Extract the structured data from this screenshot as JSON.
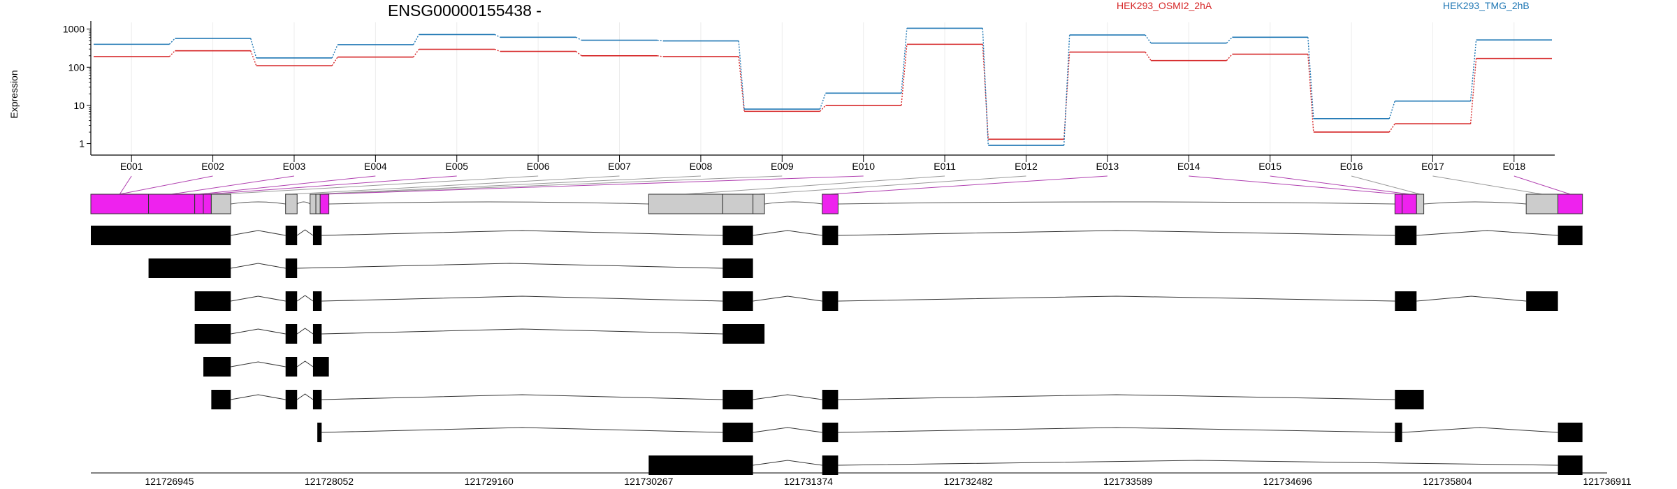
{
  "chart_data": {
    "type": "line",
    "title": "ENSG00000155438 -",
    "ylabel": "Expression",
    "y_scale": "log",
    "ylim": [
      0.5,
      1500
    ],
    "y_ticks": [
      {
        "value": 1,
        "label": "1"
      },
      {
        "value": 10,
        "label": "10"
      },
      {
        "value": 100,
        "label": "100"
      },
      {
        "value": 1000,
        "label": "1000"
      }
    ],
    "grid": "vertical, light",
    "legend_placement": "top-right",
    "categories": [
      "E001",
      "E002",
      "E003",
      "E004",
      "E005",
      "E006",
      "E007",
      "E008",
      "E009",
      "E010",
      "E011",
      "E012",
      "E013",
      "E014",
      "E015",
      "E016",
      "E017",
      "E018"
    ],
    "series": [
      {
        "name": "HEK293_OSMI2_2hA",
        "color": "#d62728",
        "values": [
          190,
          270,
          110,
          185,
          295,
          260,
          200,
          190,
          7,
          10,
          400,
          1.3,
          250,
          150,
          220,
          2,
          3.3,
          170
        ]
      },
      {
        "name": "HEK293_TMG_2hB",
        "color": "#1f77b4",
        "values": [
          400,
          570,
          175,
          390,
          720,
          610,
          510,
          490,
          8,
          21,
          1050,
          0.9,
          700,
          430,
          610,
          4.5,
          13,
          520
        ]
      }
    ],
    "gene_model": {
      "genomic_range": [
        121726400,
        121736911
      ],
      "coordinate_ticks": [
        121726945,
        121728052,
        121729160,
        121730267,
        121731374,
        121732482,
        121733589,
        121734696,
        121735804,
        121736911
      ],
      "exon_bins": [
        {
          "id": "E001",
          "start": 121726400,
          "end": 121726800,
          "highlight": true
        },
        {
          "id": "E002",
          "start": 121726800,
          "end": 121727120,
          "highlight": true
        },
        {
          "id": "E003",
          "start": 121727120,
          "end": 121727180,
          "highlight": true
        },
        {
          "id": "E004",
          "start": 121727180,
          "end": 121727235,
          "highlight": true
        },
        {
          "id": "E005",
          "start": 121727235,
          "end": 121727370,
          "highlight": false
        },
        {
          "id": "E006",
          "start": 121727750,
          "end": 121727830,
          "highlight": false
        },
        {
          "id": "E007",
          "start": 121727920,
          "end": 121727960,
          "highlight": false
        },
        {
          "id": "E008",
          "start": 121727960,
          "end": 121727990,
          "highlight": false
        },
        {
          "id": "E009",
          "start": 121727990,
          "end": 121728050,
          "highlight": true
        },
        {
          "id": "E010",
          "start": 121730267,
          "end": 121730780,
          "highlight": false
        },
        {
          "id": "E011",
          "start": 121730780,
          "end": 121730990,
          "highlight": false
        },
        {
          "id": "E012",
          "start": 121730990,
          "end": 121731070,
          "highlight": false
        },
        {
          "id": "E013",
          "start": 121731470,
          "end": 121731580,
          "highlight": true
        },
        {
          "id": "E014",
          "start": 121735440,
          "end": 121735490,
          "highlight": true
        },
        {
          "id": "E015",
          "start": 121735490,
          "end": 121735590,
          "highlight": true
        },
        {
          "id": "E016",
          "start": 121735590,
          "end": 121735640,
          "highlight": false
        },
        {
          "id": "E017",
          "start": 121736350,
          "end": 121736570,
          "highlight": false
        },
        {
          "id": "E018",
          "start": 121736570,
          "end": 121736740,
          "highlight": true
        }
      ],
      "bin_label_connections": [
        {
          "label": "E001",
          "bin": "E001"
        },
        {
          "label": "E002",
          "bin": "E001"
        },
        {
          "label": "E003",
          "bin": "E002"
        },
        {
          "label": "E004",
          "bin": "E003"
        },
        {
          "label": "E005",
          "bin": "E004"
        },
        {
          "label": "E006",
          "bin": "E005"
        },
        {
          "label": "E007",
          "bin": "E006"
        },
        {
          "label": "E008",
          "bin": "E007"
        },
        {
          "label": "E009",
          "bin": "E008"
        },
        {
          "label": "E010",
          "bin": "E009"
        },
        {
          "label": "E011",
          "bin": "E010"
        },
        {
          "label": "E012",
          "bin": "E012"
        },
        {
          "label": "E013",
          "bin": "E013"
        },
        {
          "label": "E014",
          "bin": "E014"
        },
        {
          "label": "E015",
          "bin": "E015"
        },
        {
          "label": "E016",
          "bin": "E016"
        },
        {
          "label": "E017",
          "bin": "E017"
        },
        {
          "label": "E018",
          "bin": "E018"
        }
      ],
      "transcripts": [
        [
          [
            121726400,
            121727370
          ],
          [
            121727750,
            121727830
          ],
          [
            121727940,
            121728000
          ],
          [
            121730780,
            121730990
          ],
          [
            121731470,
            121731580
          ],
          [
            121735440,
            121735590
          ],
          [
            121736570,
            121736740
          ]
        ],
        [
          [
            121726800,
            121727370
          ],
          [
            121727750,
            121727830
          ],
          [
            121730780,
            121730990
          ]
        ],
        [
          [
            121727120,
            121727370
          ],
          [
            121727750,
            121727830
          ],
          [
            121727940,
            121728000
          ],
          [
            121730780,
            121730990
          ],
          [
            121731470,
            121731580
          ],
          [
            121735440,
            121735590
          ],
          [
            121736350,
            121736570
          ]
        ],
        [
          [
            121727120,
            121727370
          ],
          [
            121727750,
            121727830
          ],
          [
            121727940,
            121728000
          ],
          [
            121730780,
            121731070
          ]
        ],
        [
          [
            121727180,
            121727370
          ],
          [
            121727750,
            121727830
          ],
          [
            121727940,
            121728050
          ]
        ],
        [
          [
            121727235,
            121727370
          ],
          [
            121727750,
            121727830
          ],
          [
            121727940,
            121728000
          ],
          [
            121730780,
            121730990
          ],
          [
            121731470,
            121731580
          ],
          [
            121735440,
            121735640
          ]
        ],
        [
          [
            121727970,
            121728000
          ],
          [
            121730780,
            121730990
          ],
          [
            121731470,
            121731580
          ],
          [
            121735440,
            121735490
          ],
          [
            121736570,
            121736740
          ]
        ],
        [
          [
            121730267,
            121730990
          ],
          [
            121731470,
            121731580
          ],
          [
            121736570,
            121736740
          ]
        ]
      ]
    }
  }
}
